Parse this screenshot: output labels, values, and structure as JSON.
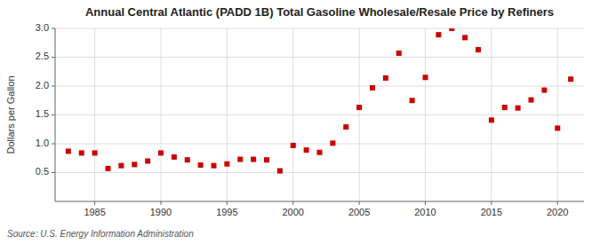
{
  "chart_data": {
    "type": "scatter",
    "title": "Annual Central Atlantic (PADD 1B) Total Gasoline Wholesale/Resale Price by Refiners",
    "y_label": "Dollars per Gallon",
    "annotations": [
      "Source: U.S. Energy Information Administration"
    ],
    "color": "#cc0000",
    "marker": "square",
    "grid": true,
    "xlim": [
      1982,
      2022
    ],
    "ylim": [
      0.0,
      3.0
    ],
    "xticks": [
      1985,
      1990,
      1995,
      2000,
      2005,
      2010,
      2015,
      2020
    ],
    "yticks": [
      0.5,
      {
        "value": 1.0,
        "label": "1.0"
      },
      1.5,
      {
        "value": 2.0,
        "label": "2.0"
      },
      2.5,
      {
        "value": 3.0,
        "label": "3.0"
      }
    ],
    "x": [
      1983,
      1984,
      1985,
      1986,
      1987,
      1988,
      1989,
      1990,
      1991,
      1992,
      1993,
      1994,
      1995,
      1996,
      1997,
      1998,
      1999,
      2000,
      2001,
      2002,
      2003,
      2004,
      2005,
      2006,
      2007,
      2008,
      2009,
      2010,
      2011,
      2012,
      2013,
      2014,
      2015,
      2016,
      2017,
      2018,
      2019,
      2020,
      2021
    ],
    "values": [
      0.87,
      0.84,
      0.84,
      0.57,
      0.62,
      0.64,
      0.7,
      0.84,
      0.77,
      0.72,
      0.63,
      0.62,
      0.65,
      0.73,
      0.73,
      0.72,
      0.53,
      0.97,
      0.89,
      0.85,
      1.01,
      1.29,
      1.63,
      1.97,
      2.14,
      2.57,
      1.75,
      2.15,
      2.89,
      3.0,
      2.84,
      2.63,
      1.41,
      1.63,
      1.62,
      1.76,
      1.93,
      1.27,
      2.12
    ]
  }
}
